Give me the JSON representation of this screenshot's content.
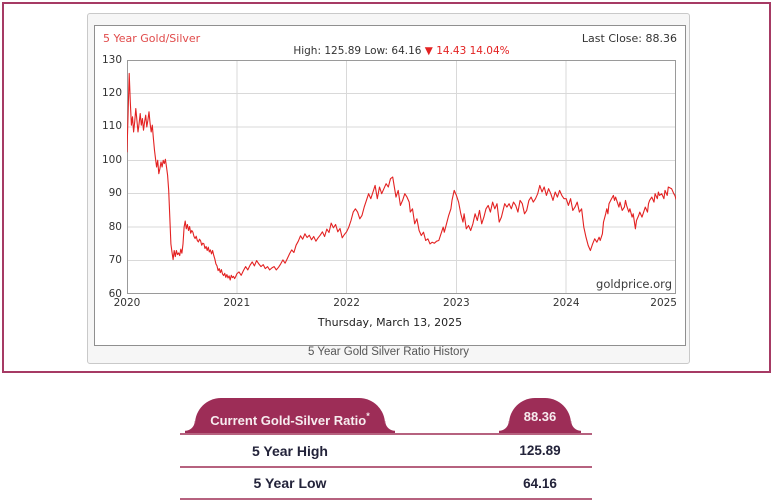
{
  "chart_widget": {
    "title": "5 Year Gold/Silver",
    "last_close_label": "Last Close: 88.36",
    "high_low_label": "High: 125.89 Low: 64.16 ",
    "change_label": "▼ 14.43 14.04%",
    "date_label": "Thursday, March 13, 2025",
    "watermark": "goldprice.org",
    "caption": "5 Year Gold Silver Ratio History",
    "title_color": "#e04a4a",
    "change_color": "#e32222",
    "frame_border_color": "#a63a64"
  },
  "chart_data": {
    "type": "line",
    "title": "5 Year Gold/Silver",
    "series_name": "Gold-Silver Ratio",
    "high": 125.89,
    "low": 64.16,
    "last_close": 88.36,
    "x_range": [
      2020,
      2025
    ],
    "y_range": [
      60,
      130
    ],
    "x_ticks": [
      2020,
      2021,
      2022,
      2023,
      2024,
      2025
    ],
    "y_ticks": [
      60,
      70,
      80,
      90,
      100,
      110,
      120,
      130
    ],
    "grid": true,
    "line_color": "#e32222",
    "grid_color": "#d9d9d9",
    "axis_color": "#9a9a9a",
    "points": [
      [
        2020.0,
        102.5
      ],
      [
        2020.01,
        114
      ],
      [
        2020.02,
        126
      ],
      [
        2020.03,
        117.5
      ],
      [
        2020.04,
        110.5
      ],
      [
        2020.05,
        113
      ],
      [
        2020.06,
        108.5
      ],
      [
        2020.07,
        111.5
      ],
      [
        2020.08,
        115.5
      ],
      [
        2020.09,
        112
      ],
      [
        2020.1,
        108.5
      ],
      [
        2020.11,
        111
      ],
      [
        2020.12,
        114
      ],
      [
        2020.13,
        110.5
      ],
      [
        2020.14,
        112.5
      ],
      [
        2020.15,
        109
      ],
      [
        2020.16,
        111.5
      ],
      [
        2020.17,
        113.5
      ],
      [
        2020.18,
        110
      ],
      [
        2020.19,
        112
      ],
      [
        2020.2,
        114.5
      ],
      [
        2020.21,
        111
      ],
      [
        2020.22,
        108.5
      ],
      [
        2020.23,
        110.5
      ],
      [
        2020.24,
        106.5
      ],
      [
        2020.25,
        103
      ],
      [
        2020.26,
        100.5
      ],
      [
        2020.27,
        98
      ],
      [
        2020.28,
        100
      ],
      [
        2020.29,
        96
      ],
      [
        2020.3,
        97.5
      ],
      [
        2020.31,
        99.5
      ],
      [
        2020.32,
        98
      ],
      [
        2020.33,
        100
      ],
      [
        2020.34,
        99
      ],
      [
        2020.35,
        100.3
      ],
      [
        2020.36,
        98
      ],
      [
        2020.37,
        95.5
      ],
      [
        2020.38,
        91
      ],
      [
        2020.39,
        83
      ],
      [
        2020.4,
        75
      ],
      [
        2020.41,
        72.5
      ],
      [
        2020.42,
        70.3
      ],
      [
        2020.43,
        73
      ],
      [
        2020.44,
        71.2
      ],
      [
        2020.45,
        73
      ],
      [
        2020.46,
        71.8
      ],
      [
        2020.47,
        72.3
      ],
      [
        2020.48,
        71.5
      ],
      [
        2020.49,
        73.4
      ],
      [
        2020.5,
        72.2
      ],
      [
        2020.51,
        75
      ],
      [
        2020.52,
        80
      ],
      [
        2020.53,
        81.8
      ],
      [
        2020.54,
        79.5
      ],
      [
        2020.55,
        80.8
      ],
      [
        2020.56,
        79
      ],
      [
        2020.57,
        80.2
      ],
      [
        2020.58,
        78.2
      ],
      [
        2020.59,
        79
      ],
      [
        2020.6,
        78.5
      ],
      [
        2020.61,
        77.2
      ],
      [
        2020.62,
        76.6
      ],
      [
        2020.63,
        77.3
      ],
      [
        2020.64,
        76
      ],
      [
        2020.65,
        75.6
      ],
      [
        2020.66,
        76.4
      ],
      [
        2020.67,
        75.9
      ],
      [
        2020.68,
        74.6
      ],
      [
        2020.69,
        75.2
      ],
      [
        2020.7,
        75
      ],
      [
        2020.71,
        73.6
      ],
      [
        2020.72,
        74.2
      ],
      [
        2020.73,
        73
      ],
      [
        2020.74,
        74
      ],
      [
        2020.75,
        72.6
      ],
      [
        2020.76,
        73.2
      ],
      [
        2020.77,
        72
      ],
      [
        2020.78,
        73
      ],
      [
        2020.79,
        71.6
      ],
      [
        2020.8,
        70.5
      ],
      [
        2020.81,
        69
      ],
      [
        2020.82,
        68.4
      ],
      [
        2020.83,
        67
      ],
      [
        2020.84,
        67.6
      ],
      [
        2020.85,
        66.4
      ],
      [
        2020.86,
        67.3
      ],
      [
        2020.87,
        66
      ],
      [
        2020.88,
        65.5
      ],
      [
        2020.89,
        66.2
      ],
      [
        2020.9,
        65
      ],
      [
        2020.91,
        65.8
      ],
      [
        2020.92,
        64.8
      ],
      [
        2020.93,
        65.4
      ],
      [
        2020.94,
        64.2
      ],
      [
        2020.95,
        65.6
      ],
      [
        2020.96,
        64.9
      ],
      [
        2020.97,
        65.3
      ],
      [
        2020.98,
        64.6
      ],
      [
        2020.99,
        65.2
      ],
      [
        2021.0,
        66
      ],
      [
        2021.02,
        66.6
      ],
      [
        2021.04,
        65.6
      ],
      [
        2021.06,
        67
      ],
      [
        2021.08,
        68.2
      ],
      [
        2021.1,
        67.2
      ],
      [
        2021.12,
        68.6
      ],
      [
        2021.14,
        69.6
      ],
      [
        2021.16,
        68.4
      ],
      [
        2021.18,
        70
      ],
      [
        2021.2,
        69
      ],
      [
        2021.22,
        68.2
      ],
      [
        2021.24,
        68.8
      ],
      [
        2021.26,
        67.6
      ],
      [
        2021.28,
        68.2
      ],
      [
        2021.3,
        67.2
      ],
      [
        2021.32,
        67.8
      ],
      [
        2021.34,
        68.2
      ],
      [
        2021.36,
        67.2
      ],
      [
        2021.38,
        68
      ],
      [
        2021.4,
        69
      ],
      [
        2021.42,
        70.2
      ],
      [
        2021.44,
        69.2
      ],
      [
        2021.46,
        70.6
      ],
      [
        2021.48,
        72
      ],
      [
        2021.5,
        73.2
      ],
      [
        2021.52,
        72.4
      ],
      [
        2021.54,
        74.6
      ],
      [
        2021.56,
        75.8
      ],
      [
        2021.58,
        77.4
      ],
      [
        2021.6,
        76.4
      ],
      [
        2021.62,
        78
      ],
      [
        2021.64,
        76.9
      ],
      [
        2021.66,
        77.6
      ],
      [
        2021.68,
        76.2
      ],
      [
        2021.7,
        77.2
      ],
      [
        2021.72,
        75.8
      ],
      [
        2021.74,
        76.8
      ],
      [
        2021.76,
        77.6
      ],
      [
        2021.78,
        78.6
      ],
      [
        2021.8,
        77.2
      ],
      [
        2021.82,
        79.4
      ],
      [
        2021.84,
        78.4
      ],
      [
        2021.86,
        81.2
      ],
      [
        2021.88,
        79.8
      ],
      [
        2021.9,
        80.8
      ],
      [
        2021.92,
        78.6
      ],
      [
        2021.94,
        79.6
      ],
      [
        2021.96,
        76.8
      ],
      [
        2021.98,
        77.8
      ],
      [
        2022.0,
        78.6
      ],
      [
        2022.02,
        80
      ],
      [
        2022.04,
        82
      ],
      [
        2022.06,
        84.5
      ],
      [
        2022.08,
        85.5
      ],
      [
        2022.1,
        84.5
      ],
      [
        2022.12,
        82.5
      ],
      [
        2022.14,
        83.5
      ],
      [
        2022.16,
        86
      ],
      [
        2022.18,
        88
      ],
      [
        2022.2,
        90
      ],
      [
        2022.22,
        88.5
      ],
      [
        2022.24,
        90.5
      ],
      [
        2022.26,
        92.5
      ],
      [
        2022.28,
        88.5
      ],
      [
        2022.3,
        92
      ],
      [
        2022.32,
        90
      ],
      [
        2022.34,
        91.5
      ],
      [
        2022.36,
        93
      ],
      [
        2022.38,
        92
      ],
      [
        2022.4,
        94.5
      ],
      [
        2022.42,
        95
      ],
      [
        2022.44,
        91
      ],
      [
        2022.45,
        89
      ],
      [
        2022.47,
        91
      ],
      [
        2022.49,
        86.5
      ],
      [
        2022.51,
        88
      ],
      [
        2022.53,
        90
      ],
      [
        2022.55,
        89
      ],
      [
        2022.57,
        87.5
      ],
      [
        2022.58,
        84.5
      ],
      [
        2022.6,
        85.5
      ],
      [
        2022.62,
        81
      ],
      [
        2022.64,
        82.5
      ],
      [
        2022.66,
        79
      ],
      [
        2022.68,
        77.5
      ],
      [
        2022.7,
        78.5
      ],
      [
        2022.72,
        76
      ],
      [
        2022.74,
        76.5
      ],
      [
        2022.76,
        75
      ],
      [
        2022.78,
        75.5
      ],
      [
        2022.8,
        75.2
      ],
      [
        2022.82,
        75.8
      ],
      [
        2022.84,
        76
      ],
      [
        2022.86,
        78
      ],
      [
        2022.88,
        80
      ],
      [
        2022.89,
        78.5
      ],
      [
        2022.91,
        81
      ],
      [
        2022.93,
        83.5
      ],
      [
        2022.95,
        85.5
      ],
      [
        2022.96,
        88
      ],
      [
        2022.98,
        91
      ],
      [
        2023.0,
        89.5
      ],
      [
        2023.02,
        87.5
      ],
      [
        2023.04,
        84
      ],
      [
        2023.06,
        81.5
      ],
      [
        2023.07,
        84
      ],
      [
        2023.09,
        79.5
      ],
      [
        2023.11,
        80.5
      ],
      [
        2023.13,
        79
      ],
      [
        2023.15,
        81
      ],
      [
        2023.17,
        84
      ],
      [
        2023.19,
        82
      ],
      [
        2023.21,
        85
      ],
      [
        2023.23,
        81
      ],
      [
        2023.25,
        83
      ],
      [
        2023.27,
        85.5
      ],
      [
        2023.29,
        86.5
      ],
      [
        2023.31,
        84.5
      ],
      [
        2023.33,
        87.5
      ],
      [
        2023.35,
        85.5
      ],
      [
        2023.37,
        87
      ],
      [
        2023.39,
        81.5
      ],
      [
        2023.41,
        83
      ],
      [
        2023.44,
        87
      ],
      [
        2023.46,
        86
      ],
      [
        2023.48,
        87
      ],
      [
        2023.5,
        85.5
      ],
      [
        2023.52,
        87.5
      ],
      [
        2023.54,
        86.5
      ],
      [
        2023.56,
        84.5
      ],
      [
        2023.58,
        88
      ],
      [
        2023.6,
        87
      ],
      [
        2023.62,
        84
      ],
      [
        2023.64,
        85
      ],
      [
        2023.66,
        88
      ],
      [
        2023.68,
        89
      ],
      [
        2023.7,
        87.5
      ],
      [
        2023.72,
        88.5
      ],
      [
        2023.74,
        90
      ],
      [
        2023.76,
        92.5
      ],
      [
        2023.78,
        90.5
      ],
      [
        2023.8,
        92
      ],
      [
        2023.82,
        89.5
      ],
      [
        2023.84,
        91.5
      ],
      [
        2023.86,
        90
      ],
      [
        2023.88,
        88
      ],
      [
        2023.9,
        90.5
      ],
      [
        2023.92,
        89
      ],
      [
        2023.94,
        91
      ],
      [
        2023.96,
        89.5
      ],
      [
        2023.98,
        88.5
      ],
      [
        2024.0,
        88.5
      ],
      [
        2024.02,
        86.5
      ],
      [
        2024.04,
        88.5
      ],
      [
        2024.06,
        85
      ],
      [
        2024.08,
        86
      ],
      [
        2024.1,
        87.5
      ],
      [
        2024.12,
        84.5
      ],
      [
        2024.14,
        85.5
      ],
      [
        2024.16,
        80
      ],
      [
        2024.18,
        77
      ],
      [
        2024.2,
        74.5
      ],
      [
        2024.22,
        73
      ],
      [
        2024.24,
        75
      ],
      [
        2024.26,
        76.5
      ],
      [
        2024.28,
        75.5
      ],
      [
        2024.3,
        77
      ],
      [
        2024.31,
        76
      ],
      [
        2024.33,
        78
      ],
      [
        2024.34,
        81.5
      ],
      [
        2024.36,
        84
      ],
      [
        2024.37,
        85.5
      ],
      [
        2024.38,
        84
      ],
      [
        2024.39,
        87
      ],
      [
        2024.41,
        88.3
      ],
      [
        2024.43,
        89.5
      ],
      [
        2024.44,
        88
      ],
      [
        2024.45,
        89
      ],
      [
        2024.47,
        87
      ],
      [
        2024.48,
        86
      ],
      [
        2024.49,
        87.5
      ],
      [
        2024.51,
        85
      ],
      [
        2024.53,
        86
      ],
      [
        2024.54,
        88
      ],
      [
        2024.55,
        86.5
      ],
      [
        2024.57,
        84.5
      ],
      [
        2024.58,
        85.5
      ],
      [
        2024.6,
        83
      ],
      [
        2024.61,
        84
      ],
      [
        2024.63,
        79.5
      ],
      [
        2024.64,
        82
      ],
      [
        2024.66,
        83.5
      ],
      [
        2024.67,
        84.5
      ],
      [
        2024.69,
        83
      ],
      [
        2024.71,
        85
      ],
      [
        2024.72,
        86
      ],
      [
        2024.74,
        84.5
      ],
      [
        2024.75,
        87
      ],
      [
        2024.76,
        88
      ],
      [
        2024.78,
        89
      ],
      [
        2024.8,
        87.5
      ],
      [
        2024.81,
        90
      ],
      [
        2024.83,
        88.5
      ],
      [
        2024.84,
        90.5
      ],
      [
        2024.85,
        89.5
      ],
      [
        2024.87,
        90
      ],
      [
        2024.89,
        88.5
      ],
      [
        2024.9,
        91
      ],
      [
        2024.92,
        89.5
      ],
      [
        2024.93,
        92
      ],
      [
        2024.96,
        91.5
      ],
      [
        2024.98,
        90
      ],
      [
        2024.99,
        89.5
      ],
      [
        2025.0,
        88.4
      ]
    ]
  },
  "ratio_table": {
    "accent_color": "#9d2d57",
    "divider_color": "#b6627f",
    "header": {
      "label": "Current Gold-Silver Ratio",
      "label_sup": "*",
      "value": "88.36"
    },
    "rows": [
      {
        "label": "5 Year High",
        "value": "125.89"
      },
      {
        "label": "5 Year Low",
        "value": "64.16"
      }
    ]
  }
}
